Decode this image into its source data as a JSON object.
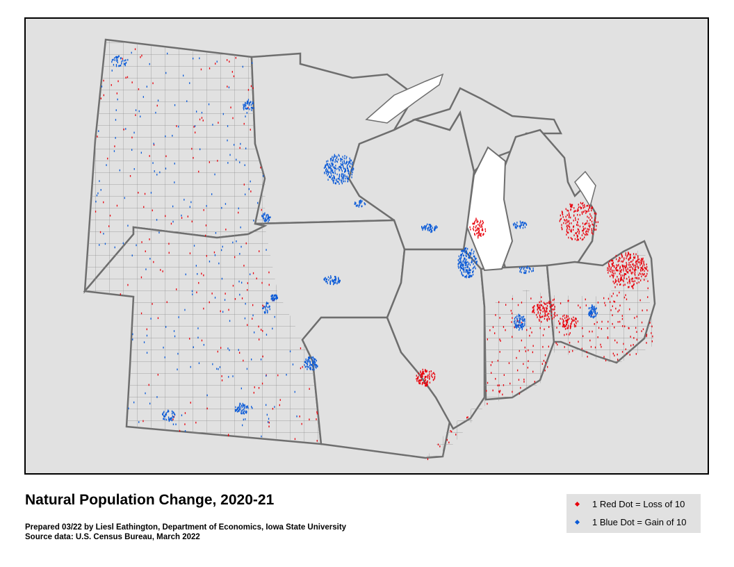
{
  "map": {
    "title": "Natural Population Change, 2020-21",
    "credit_line_1": "Prepared 03/22 by Liesl Eathington, Department of Economics, Iowa State University",
    "credit_line_2": "Source data:  U.S. Census Bureau, March 2022",
    "colors": {
      "loss_dot": "#e8000b",
      "gain_dot": "#0a5ad7",
      "land": "#e1e1e1",
      "state_border": "#6e6e6e",
      "county_border": "#8c8c8c",
      "lake": "#ffffff"
    },
    "legend": {
      "items": [
        {
          "label": "1 Red Dot = Loss of 10",
          "color": "#e8000b"
        },
        {
          "label": "1 Blue Dot = Gain of 10",
          "color": "#0a5ad7"
        }
      ]
    }
  }
}
